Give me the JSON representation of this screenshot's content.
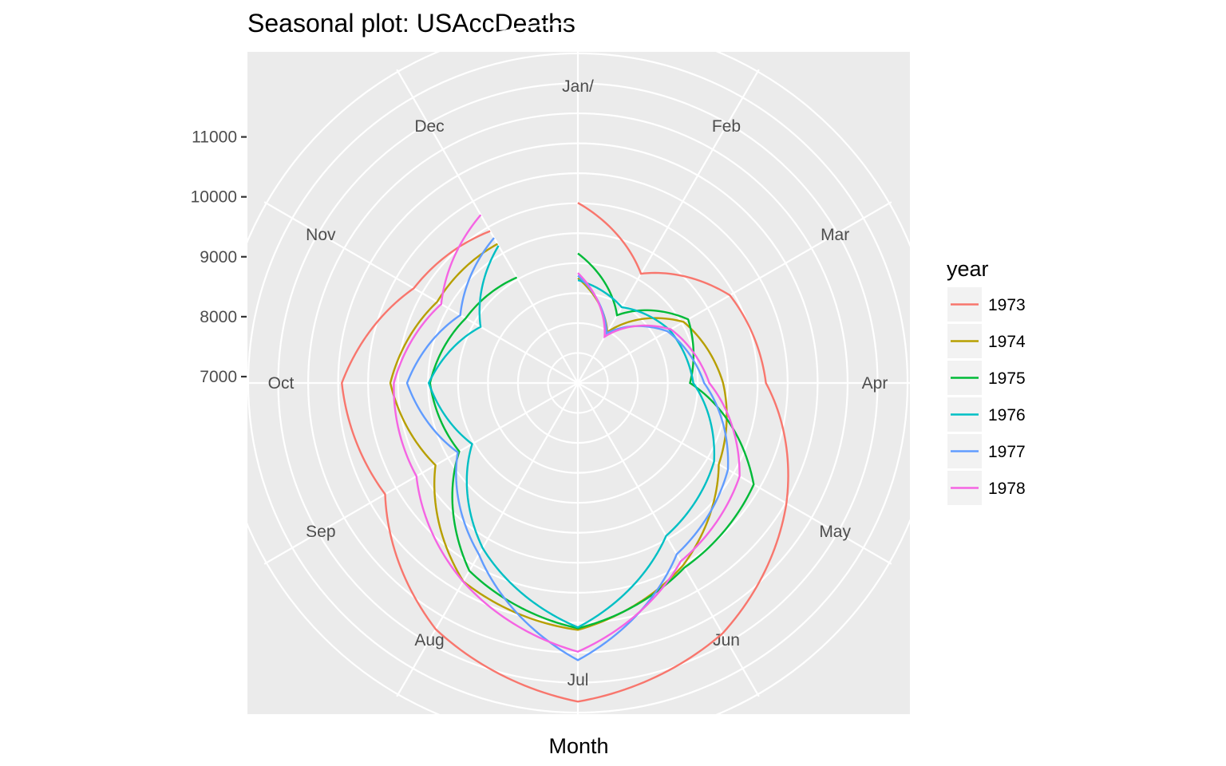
{
  "chart_data": {
    "type": "line",
    "coord": "polar",
    "title": "Seasonal plot: USAccDeaths",
    "xlabel": "Month",
    "ylabel": "",
    "categories": [
      "Jan/",
      "Feb",
      "Mar",
      "Apr",
      "May",
      "Jun",
      "Jul",
      "Aug",
      "Sep",
      "Oct",
      "Nov",
      "Dec"
    ],
    "ylim": [
      6000,
      12000
    ],
    "yticks": [
      7000,
      8000,
      9000,
      10000,
      11000
    ],
    "grid": true,
    "legend": {
      "title": "year",
      "position": "right"
    },
    "series": [
      {
        "name": "1973",
        "color": "#F8766D",
        "values": [
          9007,
          8106,
          8928,
          9137,
          10017,
          10826,
          11317,
          10744,
          9713,
          9938,
          9161,
          8927
        ]
      },
      {
        "name": "1974",
        "color": "#B79F00",
        "values": [
          7750,
          6981,
          8038,
          8422,
          8714,
          9512,
          10120,
          9823,
          8743,
          9129,
          8710,
          8680
        ]
      },
      {
        "name": "1975",
        "color": "#00BA38",
        "values": [
          8162,
          7306,
          8124,
          7870,
          9387,
          9556,
          10093,
          9620,
          8285,
          8466,
          8160,
          8034
        ]
      },
      {
        "name": "1976",
        "color": "#00BFC4",
        "values": [
          7717,
          7461,
          7767,
          7925,
          8623,
          8945,
          10078,
          9179,
          8037,
          8488,
          7874,
          8647
        ]
      },
      {
        "name": "1977",
        "color": "#619CFF",
        "values": [
          7792,
          6957,
          7726,
          8106,
          8890,
          9299,
          10625,
          9302,
          8314,
          8850,
          8265,
          8796
        ]
      },
      {
        "name": "1978",
        "color": "#F564E3",
        "values": [
          7836,
          6892,
          7791,
          8192,
          9115,
          9434,
          10484,
          9827,
          9110,
          9070,
          8633,
          9240
        ]
      }
    ]
  }
}
